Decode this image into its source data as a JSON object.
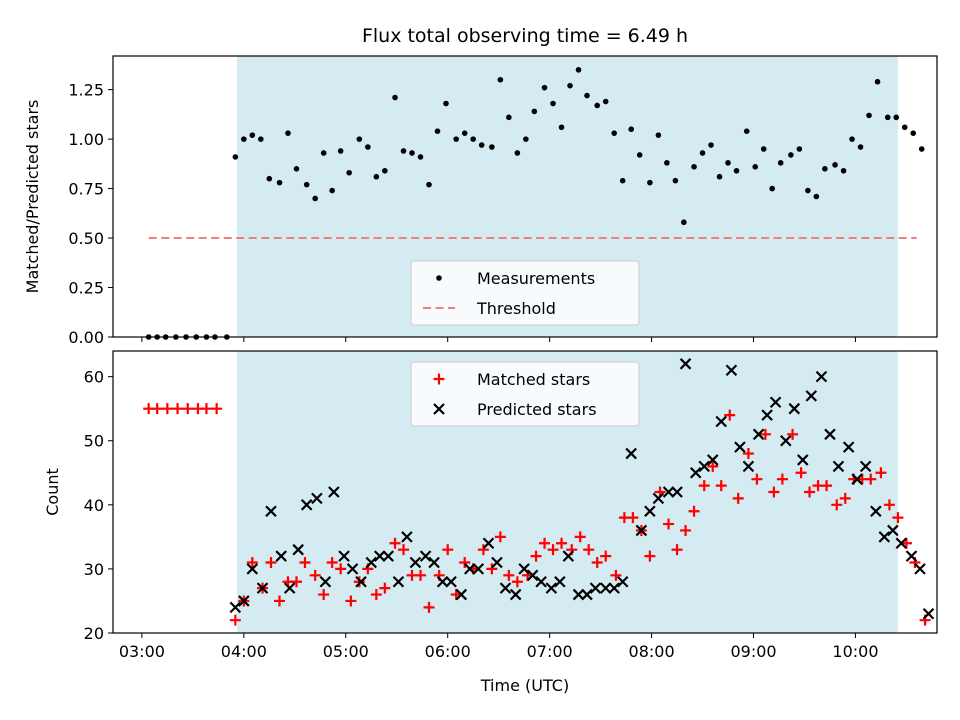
{
  "chart_data": [
    {
      "type": "scatter",
      "title": "Flux total observing time = 6.49 h",
      "xlabel": "",
      "ylabel": "Matched/Predicted stars",
      "xlim": [
        "02:43",
        "10:48"
      ],
      "ylim": [
        0,
        1.42
      ],
      "yticks": [
        "0.00",
        "0.25",
        "0.50",
        "0.75",
        "1.00",
        "1.25"
      ],
      "grid": false,
      "legend_position": "lower-center",
      "shaded_interval": {
        "start": "03:56",
        "end": "10:25",
        "color": "#d4ebf2"
      },
      "series": [
        {
          "name": "Measurements",
          "marker": "dot",
          "color": "#000000",
          "points": [
            [
              "03:04",
              0
            ],
            [
              "03:09",
              0
            ],
            [
              "03:14",
              0
            ],
            [
              "03:20",
              0
            ],
            [
              "03:26",
              0
            ],
            [
              "03:32",
              0
            ],
            [
              "03:38",
              0
            ],
            [
              "03:43",
              0
            ],
            [
              "03:50",
              0
            ],
            [
              "03:55",
              0.91
            ],
            [
              "04:00",
              1.0
            ],
            [
              "04:05",
              1.02
            ],
            [
              "04:10",
              1.0
            ],
            [
              "04:15",
              0.8
            ],
            [
              "04:21",
              0.78
            ],
            [
              "04:26",
              1.03
            ],
            [
              "04:31",
              0.85
            ],
            [
              "04:37",
              0.77
            ],
            [
              "04:42",
              0.7
            ],
            [
              "04:47",
              0.93
            ],
            [
              "04:52",
              0.74
            ],
            [
              "04:57",
              0.94
            ],
            [
              "05:02",
              0.83
            ],
            [
              "05:08",
              1.0
            ],
            [
              "05:13",
              0.96
            ],
            [
              "05:18",
              0.81
            ],
            [
              "05:23",
              0.84
            ],
            [
              "05:29",
              1.21
            ],
            [
              "05:34",
              0.94
            ],
            [
              "05:39",
              0.93
            ],
            [
              "05:44",
              0.91
            ],
            [
              "05:49",
              0.77
            ],
            [
              "05:54",
              1.04
            ],
            [
              "05:59",
              1.18
            ],
            [
              "06:05",
              1.0
            ],
            [
              "06:10",
              1.03
            ],
            [
              "06:15",
              1.0
            ],
            [
              "06:20",
              0.97
            ],
            [
              "06:26",
              0.96
            ],
            [
              "06:31",
              1.3
            ],
            [
              "06:36",
              1.11
            ],
            [
              "06:41",
              0.93
            ],
            [
              "06:46",
              1.0
            ],
            [
              "06:51",
              1.14
            ],
            [
              "06:57",
              1.26
            ],
            [
              "07:02",
              1.18
            ],
            [
              "07:07",
              1.06
            ],
            [
              "07:12",
              1.27
            ],
            [
              "07:17",
              1.35
            ],
            [
              "07:22",
              1.22
            ],
            [
              "07:28",
              1.17
            ],
            [
              "07:33",
              1.19
            ],
            [
              "07:38",
              1.03
            ],
            [
              "07:43",
              0.79
            ],
            [
              "07:48",
              1.05
            ],
            [
              "07:53",
              0.92
            ],
            [
              "07:59",
              0.78
            ],
            [
              "08:04",
              1.02
            ],
            [
              "08:09",
              0.88
            ],
            [
              "08:14",
              0.79
            ],
            [
              "08:19",
              0.58
            ],
            [
              "08:25",
              0.86
            ],
            [
              "08:30",
              0.93
            ],
            [
              "08:35",
              0.97
            ],
            [
              "08:40",
              0.81
            ],
            [
              "08:45",
              0.88
            ],
            [
              "08:50",
              0.84
            ],
            [
              "08:56",
              1.04
            ],
            [
              "09:01",
              0.86
            ],
            [
              "09:06",
              0.95
            ],
            [
              "09:11",
              0.75
            ],
            [
              "09:16",
              0.88
            ],
            [
              "09:22",
              0.92
            ],
            [
              "09:27",
              0.95
            ],
            [
              "09:32",
              0.74
            ],
            [
              "09:37",
              0.71
            ],
            [
              "09:42",
              0.85
            ],
            [
              "09:48",
              0.87
            ],
            [
              "09:53",
              0.84
            ],
            [
              "09:58",
              1.0
            ],
            [
              "10:03",
              0.96
            ],
            [
              "10:08",
              1.12
            ],
            [
              "10:13",
              1.29
            ],
            [
              "10:19",
              1.11
            ],
            [
              "10:24",
              1.11
            ],
            [
              "10:29",
              1.06
            ],
            [
              "10:34",
              1.03
            ],
            [
              "10:39",
              0.95
            ]
          ]
        },
        {
          "name": "Threshold",
          "marker": "dashed-line",
          "color": "#f08080",
          "points": [
            [
              "03:04",
              0.5
            ],
            [
              "10:36",
              0.5
            ]
          ]
        }
      ]
    },
    {
      "type": "scatter",
      "title": "",
      "xlabel": "Time (UTC)",
      "ylabel": "Count",
      "xlim": [
        "02:43",
        "10:48"
      ],
      "ylim": [
        20,
        64
      ],
      "yticks": [
        "20",
        "30",
        "40",
        "50",
        "60"
      ],
      "xticks": [
        "03:00",
        "04:00",
        "05:00",
        "06:00",
        "07:00",
        "08:00",
        "09:00",
        "10:00"
      ],
      "grid": false,
      "legend_position": "upper-center",
      "shaded_interval": {
        "start": "03:56",
        "end": "10:25",
        "color": "#d4ebf2"
      },
      "series": [
        {
          "name": "Matched stars",
          "marker": "plus",
          "color": "#ff0000",
          "points": [
            [
              "03:04",
              55
            ],
            [
              "03:09",
              55
            ],
            [
              "03:15",
              55
            ],
            [
              "03:21",
              55
            ],
            [
              "03:27",
              55
            ],
            [
              "03:33",
              55
            ],
            [
              "03:38",
              55
            ],
            [
              "03:44",
              55
            ],
            [
              "03:55",
              22
            ],
            [
              "04:00",
              25
            ],
            [
              "04:05",
              31
            ],
            [
              "04:11",
              27
            ],
            [
              "04:16",
              31
            ],
            [
              "04:21",
              25
            ],
            [
              "04:26",
              28
            ],
            [
              "04:31",
              28
            ],
            [
              "04:36",
              31
            ],
            [
              "04:42",
              29
            ],
            [
              "04:47",
              26
            ],
            [
              "04:52",
              31
            ],
            [
              "04:57",
              30
            ],
            [
              "05:03",
              25
            ],
            [
              "05:08",
              28
            ],
            [
              "05:13",
              30
            ],
            [
              "05:18",
              26
            ],
            [
              "05:23",
              27
            ],
            [
              "05:29",
              34
            ],
            [
              "05:34",
              33
            ],
            [
              "05:39",
              29
            ],
            [
              "05:44",
              29
            ],
            [
              "05:49",
              24
            ],
            [
              "05:55",
              29
            ],
            [
              "06:00",
              33
            ],
            [
              "06:05",
              26
            ],
            [
              "06:10",
              31
            ],
            [
              "06:15",
              30
            ],
            [
              "06:21",
              33
            ],
            [
              "06:26",
              30
            ],
            [
              "06:31",
              35
            ],
            [
              "06:36",
              29
            ],
            [
              "06:41",
              28
            ],
            [
              "06:47",
              29
            ],
            [
              "06:52",
              32
            ],
            [
              "06:57",
              34
            ],
            [
              "07:02",
              33
            ],
            [
              "07:07",
              34
            ],
            [
              "07:13",
              33
            ],
            [
              "07:18",
              35
            ],
            [
              "07:23",
              33
            ],
            [
              "07:28",
              31
            ],
            [
              "07:33",
              32
            ],
            [
              "07:39",
              29
            ],
            [
              "07:44",
              38
            ],
            [
              "07:49",
              38
            ],
            [
              "07:54",
              36
            ],
            [
              "07:59",
              32
            ],
            [
              "08:05",
              42
            ],
            [
              "08:10",
              37
            ],
            [
              "08:15",
              33
            ],
            [
              "08:20",
              36
            ],
            [
              "08:25",
              39
            ],
            [
              "08:31",
              43
            ],
            [
              "08:36",
              46
            ],
            [
              "08:41",
              43
            ],
            [
              "08:46",
              54
            ],
            [
              "08:51",
              41
            ],
            [
              "08:57",
              48
            ],
            [
              "09:02",
              44
            ],
            [
              "09:07",
              51
            ],
            [
              "09:12",
              42
            ],
            [
              "09:17",
              44
            ],
            [
              "09:23",
              51
            ],
            [
              "09:28",
              45
            ],
            [
              "09:33",
              42
            ],
            [
              "09:38",
              43
            ],
            [
              "09:43",
              43
            ],
            [
              "09:49",
              40
            ],
            [
              "09:54",
              41
            ],
            [
              "09:59",
              44
            ],
            [
              "10:04",
              44
            ],
            [
              "10:09",
              44
            ],
            [
              "10:15",
              45
            ],
            [
              "10:20",
              40
            ],
            [
              "10:25",
              38
            ],
            [
              "10:30",
              34
            ],
            [
              "10:35",
              31
            ],
            [
              "10:41",
              22
            ]
          ]
        },
        {
          "name": "Predicted stars",
          "marker": "x",
          "color": "#000000",
          "points": [
            [
              "03:55",
              24
            ],
            [
              "04:00",
              25
            ],
            [
              "04:05",
              30
            ],
            [
              "04:11",
              27
            ],
            [
              "04:16",
              39
            ],
            [
              "04:22",
              32
            ],
            [
              "04:27",
              27
            ],
            [
              "04:32",
              33
            ],
            [
              "04:37",
              40
            ],
            [
              "04:43",
              41
            ],
            [
              "04:48",
              28
            ],
            [
              "04:53",
              42
            ],
            [
              "04:59",
              32
            ],
            [
              "05:04",
              30
            ],
            [
              "05:09",
              28
            ],
            [
              "05:15",
              31
            ],
            [
              "05:20",
              32
            ],
            [
              "05:25",
              32
            ],
            [
              "05:31",
              28
            ],
            [
              "05:36",
              35
            ],
            [
              "05:41",
              31
            ],
            [
              "05:47",
              32
            ],
            [
              "05:52",
              31
            ],
            [
              "05:57",
              28
            ],
            [
              "06:02",
              28
            ],
            [
              "06:08",
              26
            ],
            [
              "06:13",
              30
            ],
            [
              "06:18",
              30
            ],
            [
              "06:24",
              34
            ],
            [
              "06:29",
              31
            ],
            [
              "06:34",
              27
            ],
            [
              "06:40",
              26
            ],
            [
              "06:45",
              30
            ],
            [
              "06:50",
              29
            ],
            [
              "06:55",
              28
            ],
            [
              "07:01",
              27
            ],
            [
              "07:06",
              28
            ],
            [
              "07:11",
              32
            ],
            [
              "07:17",
              26
            ],
            [
              "07:22",
              26
            ],
            [
              "07:27",
              27
            ],
            [
              "07:33",
              27
            ],
            [
              "07:38",
              27
            ],
            [
              "07:43",
              28
            ],
            [
              "07:48",
              48
            ],
            [
              "07:54",
              36
            ],
            [
              "07:59",
              39
            ],
            [
              "08:04",
              41
            ],
            [
              "08:10",
              42
            ],
            [
              "08:15",
              42
            ],
            [
              "08:20",
              62
            ],
            [
              "08:26",
              45
            ],
            [
              "08:31",
              46
            ],
            [
              "08:36",
              47
            ],
            [
              "08:41",
              53
            ],
            [
              "08:47",
              61
            ],
            [
              "08:52",
              49
            ],
            [
              "08:57",
              46
            ],
            [
              "09:03",
              51
            ],
            [
              "09:08",
              54
            ],
            [
              "09:13",
              56
            ],
            [
              "09:19",
              50
            ],
            [
              "09:24",
              55
            ],
            [
              "09:29",
              47
            ],
            [
              "09:34",
              57
            ],
            [
              "09:40",
              60
            ],
            [
              "09:45",
              51
            ],
            [
              "09:50",
              46
            ],
            [
              "09:56",
              49
            ],
            [
              "10:01",
              44
            ],
            [
              "10:06",
              46
            ],
            [
              "10:12",
              39
            ],
            [
              "10:17",
              35
            ],
            [
              "10:22",
              36
            ],
            [
              "10:27",
              34
            ],
            [
              "10:33",
              32
            ],
            [
              "10:38",
              30
            ],
            [
              "10:43",
              23
            ]
          ]
        }
      ]
    }
  ]
}
